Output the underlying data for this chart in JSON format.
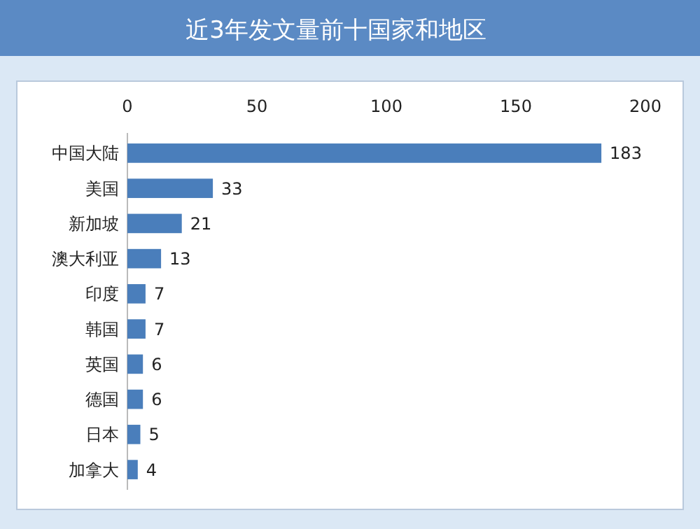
{
  "chart_data": {
    "type": "bar",
    "orientation": "horizontal",
    "title": "近3年发文量前十国家和地区",
    "categories": [
      "中国大陆",
      "美国",
      "新加坡",
      "澳大利亚",
      "印度",
      "韩国",
      "英国",
      "德国",
      "日本",
      "加拿大"
    ],
    "values": [
      183,
      33,
      21,
      13,
      7,
      7,
      6,
      6,
      5,
      4
    ],
    "color": "#4a7ebb",
    "xlim": [
      0,
      200
    ],
    "xticks": [
      0,
      50,
      100,
      150,
      200
    ],
    "data_labels": true,
    "grid": false
  }
}
